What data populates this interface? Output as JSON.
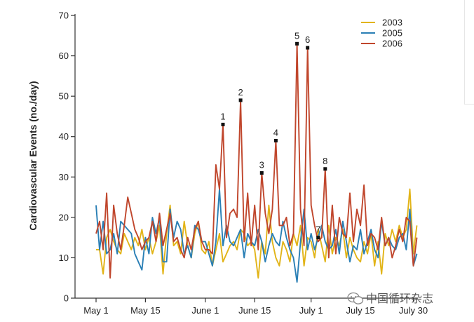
{
  "chart_data": {
    "type": "line",
    "ylabel": "Cardiovascular Events (no./day)",
    "xlabel": "",
    "ylim": [
      0,
      70
    ],
    "yticks": [
      0,
      10,
      20,
      30,
      40,
      50,
      60,
      70
    ],
    "xlim": [
      1,
      92
    ],
    "xticks": [
      {
        "day": 1,
        "label": "May 1"
      },
      {
        "day": 15,
        "label": "May 15"
      },
      {
        "day": 32,
        "label": "June 1"
      },
      {
        "day": 46,
        "label": "June 15"
      },
      {
        "day": 62,
        "label": "July 1"
      },
      {
        "day": 76,
        "label": "July 15"
      },
      {
        "day": 91,
        "label": "July 30"
      }
    ],
    "legend": {
      "placement": "top-right"
    },
    "series": [
      {
        "name": "2003",
        "color": "#e2b418",
        "x": [
          1,
          2,
          3,
          4,
          5,
          6,
          7,
          8,
          9,
          10,
          11,
          12,
          13,
          14,
          15,
          16,
          17,
          18,
          19,
          20,
          21,
          22,
          23,
          24,
          25,
          26,
          27,
          28,
          29,
          30,
          31,
          32,
          33,
          34,
          35,
          36,
          37,
          38,
          39,
          40,
          41,
          42,
          43,
          44,
          45,
          46,
          47,
          48,
          49,
          50,
          51,
          52,
          53,
          54,
          55,
          56,
          57,
          58,
          59,
          60,
          61,
          62,
          63,
          64,
          65,
          66,
          67,
          68,
          69,
          70,
          71,
          72,
          73,
          74,
          75,
          76,
          77,
          78,
          79,
          80,
          81,
          82,
          83,
          84,
          85,
          86,
          87,
          88,
          89,
          90,
          91,
          92
        ],
        "values": [
          12,
          12,
          6,
          15,
          17,
          14,
          12,
          11,
          16,
          14,
          12,
          15,
          13,
          17,
          12,
          15,
          11,
          14,
          18,
          6,
          16,
          23,
          13,
          14,
          11,
          19,
          13,
          10,
          16,
          19,
          12,
          11,
          14,
          8,
          12,
          16,
          9,
          11,
          13,
          14,
          12,
          17,
          16,
          13,
          14,
          12,
          5,
          14,
          11,
          23,
          14,
          10,
          8,
          14,
          12,
          9,
          16,
          13,
          18,
          8,
          15,
          14,
          10,
          17,
          13,
          9,
          18,
          11,
          15,
          13,
          17,
          10,
          15,
          12,
          10,
          9,
          14,
          11,
          16,
          8,
          14,
          6,
          16,
          13,
          17,
          14,
          18,
          15,
          17,
          27,
          11,
          18
        ]
      },
      {
        "name": "2005",
        "color": "#2a7fb5",
        "x": [
          1,
          2,
          3,
          4,
          5,
          6,
          7,
          8,
          9,
          10,
          11,
          12,
          13,
          14,
          15,
          16,
          17,
          18,
          19,
          20,
          21,
          22,
          23,
          24,
          25,
          26,
          27,
          28,
          29,
          30,
          31,
          32,
          33,
          34,
          35,
          36,
          37,
          38,
          39,
          40,
          41,
          42,
          43,
          44,
          45,
          46,
          47,
          48,
          49,
          50,
          51,
          52,
          53,
          54,
          55,
          56,
          57,
          58,
          59,
          60,
          61,
          62,
          63,
          64,
          65,
          66,
          67,
          68,
          69,
          70,
          71,
          72,
          73,
          74,
          75,
          76,
          77,
          78,
          79,
          80,
          81,
          82,
          83,
          84,
          85,
          86,
          87,
          88,
          89,
          90,
          91,
          92
        ],
        "values": [
          23,
          12,
          19,
          11,
          12,
          16,
          11,
          19,
          18,
          17,
          16,
          11,
          9,
          7,
          15,
          11,
          20,
          16,
          20,
          9,
          9,
          22,
          15,
          19,
          17,
          11,
          13,
          10,
          18,
          17,
          14,
          14,
          11,
          8,
          14,
          27,
          13,
          18,
          14,
          13,
          15,
          17,
          10,
          16,
          14,
          13,
          17,
          14,
          9,
          13,
          16,
          14,
          13,
          19,
          15,
          12,
          10,
          4,
          14,
          22,
          12,
          16,
          12,
          15,
          18,
          14,
          12,
          13,
          17,
          11,
          19,
          14,
          9,
          13,
          12,
          17,
          11,
          14,
          17,
          12,
          10,
          19,
          13,
          15,
          13,
          12,
          15,
          16,
          12,
          22,
          8,
          11
        ]
      },
      {
        "name": "2006",
        "color": "#c0462c",
        "x": [
          1,
          2,
          3,
          4,
          5,
          6,
          7,
          8,
          9,
          10,
          11,
          12,
          13,
          14,
          15,
          16,
          17,
          18,
          19,
          20,
          21,
          22,
          23,
          24,
          25,
          26,
          27,
          28,
          29,
          30,
          31,
          32,
          33,
          34,
          35,
          36,
          37,
          38,
          39,
          40,
          41,
          42,
          43,
          44,
          45,
          46,
          47,
          48,
          49,
          50,
          51,
          52,
          53,
          54,
          55,
          56,
          57,
          58,
          59,
          60,
          61,
          62,
          63,
          64,
          65,
          66,
          67,
          68,
          69,
          70,
          71,
          72,
          73,
          74,
          75,
          76,
          77,
          78,
          79,
          80,
          81,
          82,
          83,
          84,
          85,
          86,
          87,
          88,
          89,
          90,
          91,
          92
        ],
        "values": [
          16,
          19,
          12,
          26,
          5,
          23,
          16,
          12,
          18,
          25,
          21,
          17,
          15,
          12,
          14,
          15,
          19,
          14,
          21,
          13,
          17,
          21,
          14,
          15,
          12,
          10,
          15,
          12,
          17,
          19,
          14,
          12,
          12,
          11,
          33,
          27,
          43,
          15,
          21,
          22,
          20,
          49,
          14,
          26,
          13,
          23,
          12,
          31,
          21,
          16,
          22,
          39,
          18,
          18,
          20,
          13,
          16,
          63,
          22,
          13,
          62,
          23,
          18,
          14,
          15,
          32,
          10,
          23,
          11,
          20,
          16,
          15,
          26,
          14,
          22,
          18,
          28,
          13,
          16,
          15,
          12,
          20,
          13,
          15,
          10,
          13,
          17,
          14,
          20,
          19,
          8,
          15
        ]
      }
    ],
    "annotations": [
      {
        "label": "1",
        "x": 37,
        "y": 43
      },
      {
        "label": "2",
        "x": 42,
        "y": 49
      },
      {
        "label": "3",
        "x": 48,
        "y": 31
      },
      {
        "label": "4",
        "x": 52,
        "y": 39
      },
      {
        "label": "5",
        "x": 58,
        "y": 63
      },
      {
        "label": "6",
        "x": 61,
        "y": 62
      },
      {
        "label": "7",
        "x": 64,
        "y": 15
      },
      {
        "label": "8",
        "x": 66,
        "y": 32
      }
    ]
  },
  "watermark": {
    "text": "中国循环杂志",
    "icon": "wechat-icon"
  }
}
